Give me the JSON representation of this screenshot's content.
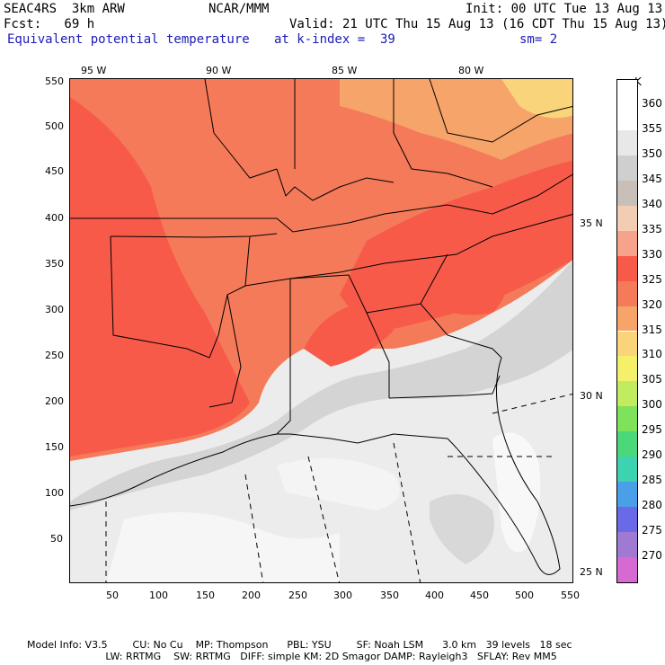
{
  "header": {
    "line1_left": "SEAC4RS  3km ARW",
    "line1_center": "NCAR/MMM",
    "line1_right": "Init: 00 UTC Tue 13 Aug 13",
    "line2_left": "Fcst:   69 h",
    "line2_right": "Valid: 21 UTC Thu 15 Aug 13 (16 CDT Thu 15 Aug 13)",
    "line3_left": "Equivalent potential temperature",
    "line3_center": "at k-index =  39",
    "line3_right": "sm= 2"
  },
  "top_lon_labels": [
    "95 W",
    "90 W",
    "85 W",
    "80 W"
  ],
  "left_ticks": [
    "550",
    "500",
    "450",
    "400",
    "350",
    "300",
    "250",
    "200",
    "150",
    "100",
    "50"
  ],
  "bottom_ticks": [
    "50",
    "100",
    "150",
    "200",
    "250",
    "300",
    "350",
    "400",
    "450",
    "500",
    "550"
  ],
  "right_lat_labels": [
    "35 N",
    "30 N",
    "25 N"
  ],
  "colorbar": {
    "unit": "K",
    "levels": [
      {
        "label": "360",
        "color": "#ffffff"
      },
      {
        "label": "355",
        "color": "#e8e8e8"
      },
      {
        "label": "350",
        "color": "#cfcfcf"
      },
      {
        "label": "345",
        "color": "#c8c0b8"
      },
      {
        "label": "340",
        "color": "#f2cdb4"
      },
      {
        "label": "335",
        "color": "#f7a38b"
      },
      {
        "label": "330",
        "color": "#f85a4a"
      },
      {
        "label": "325",
        "color": "#f47a5a"
      },
      {
        "label": "320",
        "color": "#f6a46a"
      },
      {
        "label": "315",
        "color": "#fad47a"
      },
      {
        "label": "310",
        "color": "#f5f06a"
      },
      {
        "label": "305",
        "color": "#c2ec60"
      },
      {
        "label": "300",
        "color": "#7ee25a"
      },
      {
        "label": "295",
        "color": "#4ad87a"
      },
      {
        "label": "290",
        "color": "#3cd4b0"
      },
      {
        "label": "285",
        "color": "#4aa0e6"
      },
      {
        "label": "280",
        "color": "#6a6ae8"
      },
      {
        "label": "275",
        "color": "#a07ad2"
      },
      {
        "label": "270",
        "color": "#d66ad2"
      }
    ]
  },
  "footer": {
    "line1": "Model Info: V3.5        CU: No Cu    MP: Thompson      PBL: YSU        SF: Noah LSM      3.0 km   39 levels   18 sec",
    "line2": "                         LW: RRTMG    SW: RRTMG   DIFF: simple KM: 2D Smagor DAMP: Rayleigh3   SFLAY: Rev MM5"
  }
}
